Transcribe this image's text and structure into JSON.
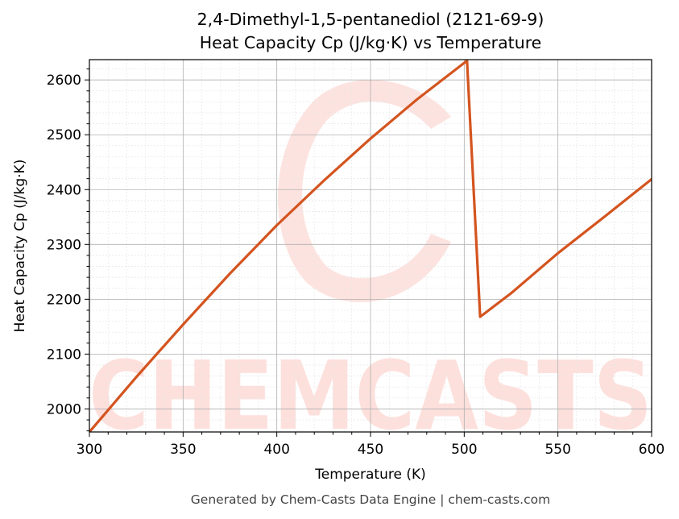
{
  "chart_data": {
    "type": "line",
    "title": "2,4-Dimethyl-1,5-pentanediol (2121-69-9)",
    "subtitle": "Heat Capacity Cp (J/kg·K) vs Temperature",
    "xlabel": "Temperature (K)",
    "ylabel": "Heat Capacity Cp (J/kg·K)",
    "xlim": [
      300,
      600
    ],
    "ylim": [
      1958,
      2637
    ],
    "xticks": [
      300,
      350,
      400,
      450,
      500,
      550,
      600
    ],
    "yticks": [
      2000,
      2100,
      2200,
      2300,
      2400,
      2500,
      2600
    ],
    "grid": true,
    "series": [
      {
        "color": "#d4541f",
        "x": [
          300,
          325,
          350,
          375,
          400,
          425,
          450,
          475,
          501.5,
          508.5,
          525,
          550,
          575,
          600
        ],
        "y": [
          1958,
          2058,
          2154,
          2247,
          2335,
          2416,
          2493,
          2565,
          2635,
          2168,
          2211,
          2284,
          2351,
          2419
        ]
      }
    ]
  },
  "watermark": {
    "text": "CHEMCASTS",
    "color": "#fde0dc"
  },
  "footer": "Generated by Chem-Casts Data Engine | chem-casts.com"
}
